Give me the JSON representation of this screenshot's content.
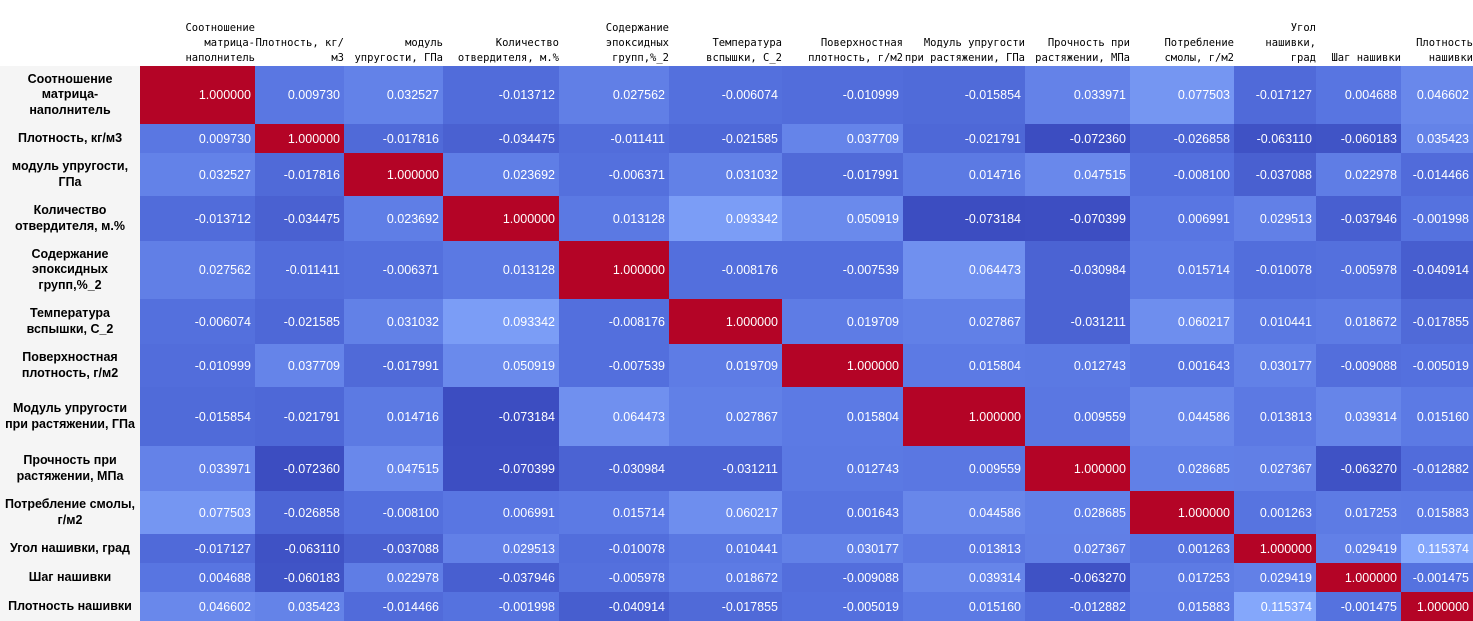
{
  "columns": [
    "Соотношение матрица-наполнитель",
    "Плотность, кг/м3",
    "модуль упругости, ГПа",
    "Количество отвердителя, м.%",
    "Содержание эпоксидных групп,%_2",
    "Температура вспышки, С_2",
    "Поверхностная плотность, г/м2",
    "Модуль упругости при растяжении, ГПа",
    "Прочность при растяжении, МПа",
    "Потребление смолы, г/м2",
    "Угол нашивки, град",
    "Шаг нашивки",
    "Плотность нашивки"
  ],
  "rows": [
    {
      "label": "Соотношение матрица-наполнитель",
      "cells": [
        "1.000000",
        "0.009730",
        "0.032527",
        "-0.013712",
        "0.027562",
        "-0.006074",
        "-0.010999",
        "-0.015854",
        "0.033971",
        "0.077503",
        "-0.017127",
        "0.004688",
        "0.046602"
      ]
    },
    {
      "label": "Плотность, кг/м3",
      "cells": [
        "0.009730",
        "1.000000",
        "-0.017816",
        "-0.034475",
        "-0.011411",
        "-0.021585",
        "0.037709",
        "-0.021791",
        "-0.072360",
        "-0.026858",
        "-0.063110",
        "-0.060183",
        "0.035423"
      ]
    },
    {
      "label": "модуль упругости, ГПа",
      "cells": [
        "0.032527",
        "-0.017816",
        "1.000000",
        "0.023692",
        "-0.006371",
        "0.031032",
        "-0.017991",
        "0.014716",
        "0.047515",
        "-0.008100",
        "-0.037088",
        "0.022978",
        "-0.014466"
      ]
    },
    {
      "label": "Количество отвердителя, м.%",
      "cells": [
        "-0.013712",
        "-0.034475",
        "0.023692",
        "1.000000",
        "0.013128",
        "0.093342",
        "0.050919",
        "-0.073184",
        "-0.070399",
        "0.006991",
        "0.029513",
        "-0.037946",
        "-0.001998"
      ]
    },
    {
      "label": "Содержание эпоксидных групп,%_2",
      "cells": [
        "0.027562",
        "-0.011411",
        "-0.006371",
        "0.013128",
        "1.000000",
        "-0.008176",
        "-0.007539",
        "0.064473",
        "-0.030984",
        "0.015714",
        "-0.010078",
        "-0.005978",
        "-0.040914"
      ]
    },
    {
      "label": "Температура вспышки, С_2",
      "cells": [
        "-0.006074",
        "-0.021585",
        "0.031032",
        "0.093342",
        "-0.008176",
        "1.000000",
        "0.019709",
        "0.027867",
        "-0.031211",
        "0.060217",
        "0.010441",
        "0.018672",
        "-0.017855"
      ]
    },
    {
      "label": "Поверхностная плотность, г/м2",
      "cells": [
        "-0.010999",
        "0.037709",
        "-0.017991",
        "0.050919",
        "-0.007539",
        "0.019709",
        "1.000000",
        "0.015804",
        "0.012743",
        "0.001643",
        "0.030177",
        "-0.009088",
        "-0.005019"
      ]
    },
    {
      "label": "Модуль упругости при растяжении, ГПа",
      "cells": [
        "-0.015854",
        "-0.021791",
        "0.014716",
        "-0.073184",
        "0.064473",
        "0.027867",
        "0.015804",
        "1.000000",
        "0.009559",
        "0.044586",
        "0.013813",
        "0.039314",
        "0.015160"
      ]
    },
    {
      "label": "Прочность при растяжении, МПа",
      "cells": [
        "0.033971",
        "-0.072360",
        "0.047515",
        "-0.070399",
        "-0.030984",
        "-0.031211",
        "0.012743",
        "0.009559",
        "1.000000",
        "0.028685",
        "0.027367",
        "-0.063270",
        "-0.012882"
      ]
    },
    {
      "label": "Потребление смолы, г/м2",
      "cells": [
        "0.077503",
        "-0.026858",
        "-0.008100",
        "0.006991",
        "0.015714",
        "0.060217",
        "0.001643",
        "0.044586",
        "0.028685",
        "1.000000",
        "0.001263",
        "0.017253",
        "0.015883"
      ]
    },
    {
      "label": "Угол нашивки, град",
      "cells": [
        "-0.017127",
        "-0.063110",
        "-0.037088",
        "0.029513",
        "-0.010078",
        "0.010441",
        "0.030177",
        "0.013813",
        "0.027367",
        "0.001263",
        "1.000000",
        "0.029419",
        "0.115374"
      ]
    },
    {
      "label": "Шаг нашивки",
      "cells": [
        "0.004688",
        "-0.060183",
        "0.022978",
        "-0.037946",
        "-0.005978",
        "0.018672",
        "-0.009088",
        "0.039314",
        "-0.063270",
        "0.017253",
        "0.029419",
        "1.000000",
        "-0.001475"
      ]
    },
    {
      "label": "Плотность нашивки",
      "cells": [
        "0.046602",
        "0.035423",
        "-0.014466",
        "-0.001998",
        "-0.040914",
        "-0.017855",
        "-0.005019",
        "0.015160",
        "-0.012882",
        "0.015883",
        "0.115374",
        "-0.001475",
        "1.000000"
      ]
    }
  ],
  "colors": {
    "diagonal": "#b40426",
    "cmap_low": "#3b4cc0",
    "cmap_mid": "#5673e0",
    "cmap_high": "#86a9fc",
    "text": "#ffffff",
    "row_label_bg": "#f5f5f5"
  }
}
